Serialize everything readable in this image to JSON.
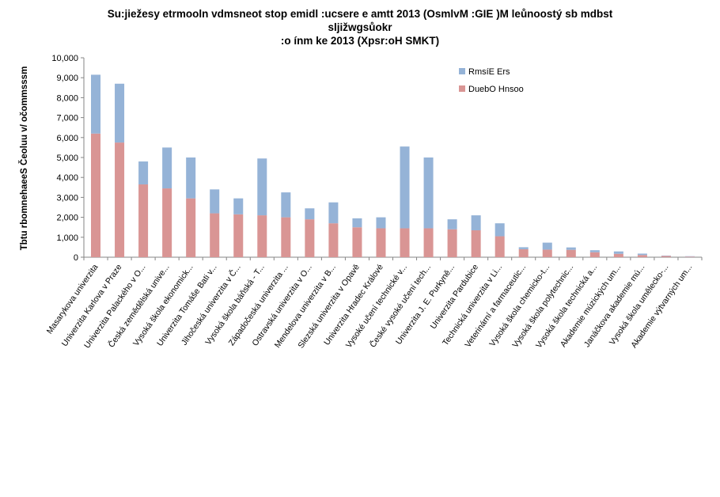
{
  "chart_data": {
    "type": "bar",
    "stacked": true,
    "title_lines": [
      "Su:jiežesy etrmooln vdmsneot stop emidl  :ucsere e amtt 2013 (OsmlvM :GIE )M leůnoostý sb mdbst",
      "sljižwgsůokr",
      ":o ínm ke 2013 (Xpsr:oH SMKT)"
    ],
    "ylabel": "Tbtu rbomnehaeeS Čeoluu v/ očommsssm",
    "xlabel": "",
    "ylim": [
      0,
      10000
    ],
    "yticks": [
      "0",
      "1,000",
      "2,000",
      "3,000",
      "4,000",
      "5,000",
      "6,000",
      "7,000",
      "8,000",
      "9,000",
      "10,000"
    ],
    "ytick_values": [
      0,
      1000,
      2000,
      3000,
      4000,
      5000,
      6000,
      7000,
      8000,
      9000,
      10000
    ],
    "grid": false,
    "legend_position": "top-right",
    "categories": [
      "Masarykova univerzita",
      "Univerzita Karlova v Praze",
      "Univerzita Palackého v O...",
      "Česká zemědělská unive...",
      "Vysoká škola ekonomick...",
      "Univerzita Tomáše Bati v...",
      "Jihočeská univerzita v Č...",
      "Vysoká škola báňská - T...",
      "Západočeská univerzita ...",
      "Ostravská univerzita v O...",
      "Mendelova univerzita v B...",
      "Slezská univerzita v Opavě",
      "Univerzita  Hradec Králové",
      "Vysoké učení technické v...",
      "České vysoké učení tech...",
      "Univerzita J. E. Purkyně...",
      "Univerzita Pardubice",
      "Technická univerzita v Li...",
      "Veterinární a farmaceutic...",
      "Vysoká škola chemicko-t...",
      "Vysoká škola polytechnic...",
      "Vysoká škola technická a...",
      "Akademie múzických um...",
      "Janáčkova akademie mú...",
      "Vysoká škola umělecko-...",
      "Akademie výtvarných um..."
    ],
    "series": [
      {
        "name": "DuebO Hnsoo",
        "color": "#d99594",
        "values": [
          6200,
          5750,
          3650,
          3450,
          2950,
          2200,
          2150,
          2100,
          2000,
          1900,
          1700,
          1500,
          1450,
          1450,
          1450,
          1400,
          1350,
          1050,
          400,
          380,
          370,
          250,
          170,
          110,
          60,
          30
        ]
      },
      {
        "name": "RmsíE Ers",
        "color": "#95b3d7",
        "values": [
          2950,
          2950,
          1150,
          2050,
          2050,
          1200,
          800,
          2850,
          1250,
          550,
          1050,
          450,
          550,
          4100,
          3550,
          500,
          750,
          650,
          100,
          350,
          120,
          100,
          120,
          70,
          20,
          20
        ]
      }
    ]
  }
}
